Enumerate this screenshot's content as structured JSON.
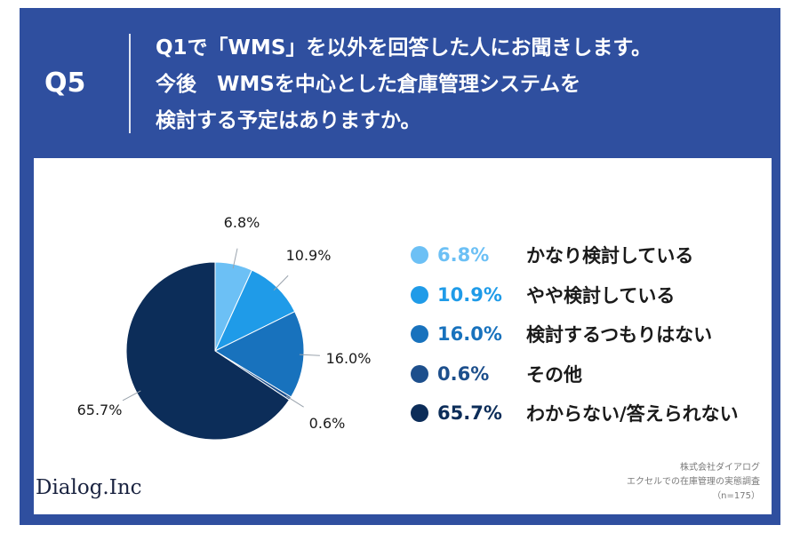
{
  "header": {
    "question_label": "Q5",
    "title_lines": [
      "Q1で「WMS」を以外を回答した人にお聞きします。",
      "今後　WMSを中心とした倉庫管理システムを",
      "検討する予定はありますか。"
    ]
  },
  "chart_data": {
    "type": "pie",
    "categories": [
      "かなり検討している",
      "やや検討している",
      "検討するつもりはない",
      "その他",
      "わからない/答えられない"
    ],
    "values": [
      6.8,
      10.9,
      16.0,
      0.6,
      65.7
    ],
    "labels": [
      "6.8%",
      "10.9%",
      "16.0%",
      "0.6%",
      "65.7%"
    ],
    "colors": [
      "#6cc0f5",
      "#1f9be8",
      "#1872bd",
      "#1d4f8c",
      "#0c2d59"
    ],
    "legend_placement": "right"
  },
  "legend_items": [
    {
      "pct": "6.8%",
      "label": "かなり検討している",
      "color": "#6cc0f5"
    },
    {
      "pct": "10.9%",
      "label": "やや検討している",
      "color": "#1f9be8"
    },
    {
      "pct": "16.0%",
      "label": "検討するつもりはない",
      "color": "#1872bd"
    },
    {
      "pct": "0.6%",
      "label": "その他",
      "color": "#1d4f8c"
    },
    {
      "pct": "65.7%",
      "label": "わからない/答えられない",
      "color": "#0c2d59"
    }
  ],
  "footer": {
    "logo": "Dialog.Inc",
    "source_lines": [
      "株式会社ダイアログ",
      "エクセルでの在庫管理の実態調査",
      "（n=175）"
    ]
  }
}
